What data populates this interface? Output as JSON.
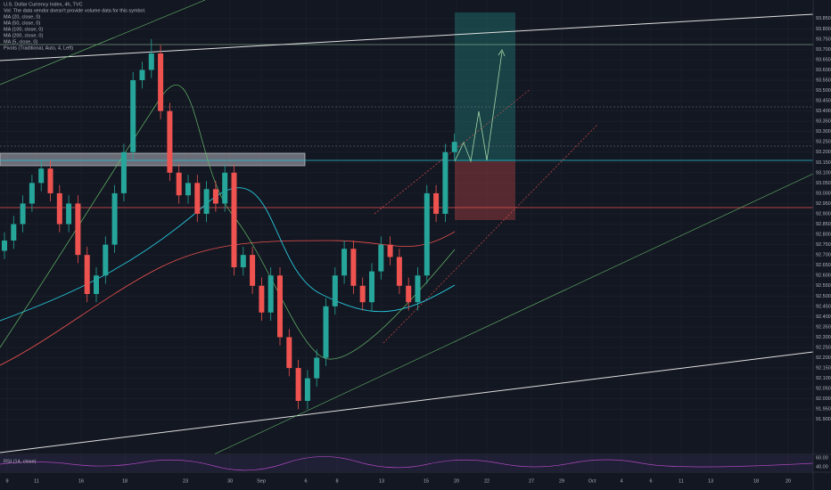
{
  "chart_data": {
    "type": "candlestick",
    "title": "U.S. Dollar Currency Index, 4h, TVC",
    "legend_lines": [
      "Vol: The data vendor doesn't provide volume data for this symbol.",
      "MA (20, close, 0)",
      "MA (50, close, 0)",
      "MA (100, close, 0)",
      "MA (200, close, 0)",
      "MA (5, close, 0)",
      "Pivots (Traditional, Auto, 4, Left)"
    ],
    "up_color": "#26a69a",
    "down_color": "#ef5350",
    "open": [
      92.72,
      92.77,
      92.85,
      92.95,
      93.05,
      93.12,
      93.0,
      92.85,
      92.95,
      92.7,
      92.51,
      92.6,
      92.75,
      93.0,
      93.2,
      93.55,
      93.6,
      93.68,
      93.4,
      93.1,
      92.99,
      93.05,
      92.9,
      93.02,
      92.95,
      93.1,
      92.64,
      92.7,
      92.55,
      92.42,
      92.6,
      92.3,
      92.15,
      91.99,
      92.1,
      92.2,
      92.45,
      92.6,
      92.73,
      92.55,
      92.47,
      92.62,
      92.75,
      92.69,
      92.55,
      92.47,
      92.6,
      93.0,
      92.9,
      93.2
    ],
    "high": [
      92.81,
      92.89,
      92.99,
      93.09,
      93.16,
      93.16,
      93.04,
      92.99,
      92.99,
      92.74,
      92.64,
      92.79,
      93.04,
      93.24,
      93.59,
      93.64,
      93.75,
      93.72,
      93.44,
      93.14,
      93.09,
      93.09,
      93.06,
      93.06,
      93.14,
      93.14,
      92.74,
      92.74,
      92.59,
      92.64,
      92.64,
      92.34,
      92.19,
      92.14,
      92.24,
      92.49,
      92.64,
      92.77,
      92.77,
      92.59,
      92.66,
      92.79,
      92.79,
      92.73,
      92.59,
      92.64,
      93.04,
      93.04,
      93.24,
      93.29
    ],
    "low": [
      92.68,
      92.73,
      92.81,
      92.91,
      93.01,
      92.96,
      92.81,
      92.81,
      92.66,
      92.47,
      92.47,
      92.56,
      92.71,
      92.96,
      93.16,
      93.51,
      93.56,
      93.36,
      93.06,
      92.95,
      92.95,
      92.86,
      92.86,
      92.91,
      92.91,
      92.6,
      92.6,
      92.51,
      92.38,
      92.38,
      92.26,
      92.11,
      91.95,
      91.95,
      92.06,
      92.16,
      92.41,
      92.56,
      92.51,
      92.43,
      92.43,
      92.58,
      92.65,
      92.51,
      92.43,
      92.43,
      92.56,
      92.86,
      92.86,
      93.16
    ],
    "close": [
      92.77,
      92.85,
      92.95,
      93.05,
      93.12,
      93.0,
      92.85,
      92.95,
      92.7,
      92.51,
      92.6,
      92.75,
      93.0,
      93.2,
      93.55,
      93.6,
      93.68,
      93.4,
      93.1,
      92.99,
      93.05,
      92.9,
      93.02,
      92.95,
      93.1,
      92.64,
      92.7,
      92.55,
      92.42,
      92.6,
      92.3,
      92.15,
      91.99,
      92.1,
      92.2,
      92.45,
      92.6,
      92.73,
      92.55,
      92.47,
      92.62,
      92.75,
      92.69,
      92.55,
      92.47,
      92.6,
      93.0,
      92.9,
      93.2,
      93.25
    ],
    "x_labels": [
      "9",
      "11",
      "16",
      "18",
      "23",
      "30",
      "Sep",
      "6",
      "8",
      "13",
      "15",
      "20",
      "22",
      "27",
      "29",
      "Oct",
      "4",
      "6",
      "11",
      "13",
      "18",
      "20"
    ],
    "ylim": [
      91.73,
      93.94
    ],
    "yticks": [
      {
        "value": 91.9,
        "label": "91.900"
      },
      {
        "value": 91.95,
        "label": "91.950"
      },
      {
        "value": 92,
        "label": "92.000"
      },
      {
        "value": 92.05,
        "label": "92.050"
      },
      {
        "value": 92.1,
        "label": "92.100"
      },
      {
        "value": 92.15,
        "label": "92.150"
      },
      {
        "value": 92.2,
        "label": "92.200"
      },
      {
        "value": 92.25,
        "label": "92.250"
      },
      {
        "value": 92.3,
        "label": "92.300"
      },
      {
        "value": 92.35,
        "label": "92.350"
      },
      {
        "value": 92.4,
        "label": "92.400"
      },
      {
        "value": 92.45,
        "label": "92.450"
      },
      {
        "value": 92.5,
        "label": "92.500"
      },
      {
        "value": 92.55,
        "label": "92.550"
      },
      {
        "value": 92.6,
        "label": "92.600"
      },
      {
        "value": 92.65,
        "label": "92.650"
      },
      {
        "value": 92.7,
        "label": "92.700"
      },
      {
        "value": 92.75,
        "label": "92.750"
      },
      {
        "value": 92.8,
        "label": "92.800"
      },
      {
        "value": 92.85,
        "label": "92.850"
      },
      {
        "value": 92.9,
        "label": "92.900"
      },
      {
        "value": 92.95,
        "label": "92.950"
      },
      {
        "value": 93,
        "label": "93.000"
      },
      {
        "value": 93.05,
        "label": "93.050"
      },
      {
        "value": 93.1,
        "label": "93.100"
      },
      {
        "value": 93.15,
        "label": "93.150"
      },
      {
        "value": 93.2,
        "label": "93.200"
      },
      {
        "value": 93.25,
        "label": "93.250"
      },
      {
        "value": 93.3,
        "label": "93.300"
      },
      {
        "value": 93.35,
        "label": "93.350"
      },
      {
        "value": 93.4,
        "label": "93.400"
      },
      {
        "value": 93.45,
        "label": "93.450"
      },
      {
        "value": 93.5,
        "label": "93.500"
      },
      {
        "value": 93.55,
        "label": "93.550"
      },
      {
        "value": 93.6,
        "label": "93.600"
      },
      {
        "value": 93.65,
        "label": "93.650"
      },
      {
        "value": 93.7,
        "label": "93.700"
      },
      {
        "value": 93.75,
        "label": "93.750"
      },
      {
        "value": 93.8,
        "label": "93.800"
      },
      {
        "value": 93.85,
        "label": "93.850"
      }
    ],
    "rsi_label": "RSI (14, close)",
    "rsi_ticks": [
      "60.00",
      "40.00"
    ]
  }
}
